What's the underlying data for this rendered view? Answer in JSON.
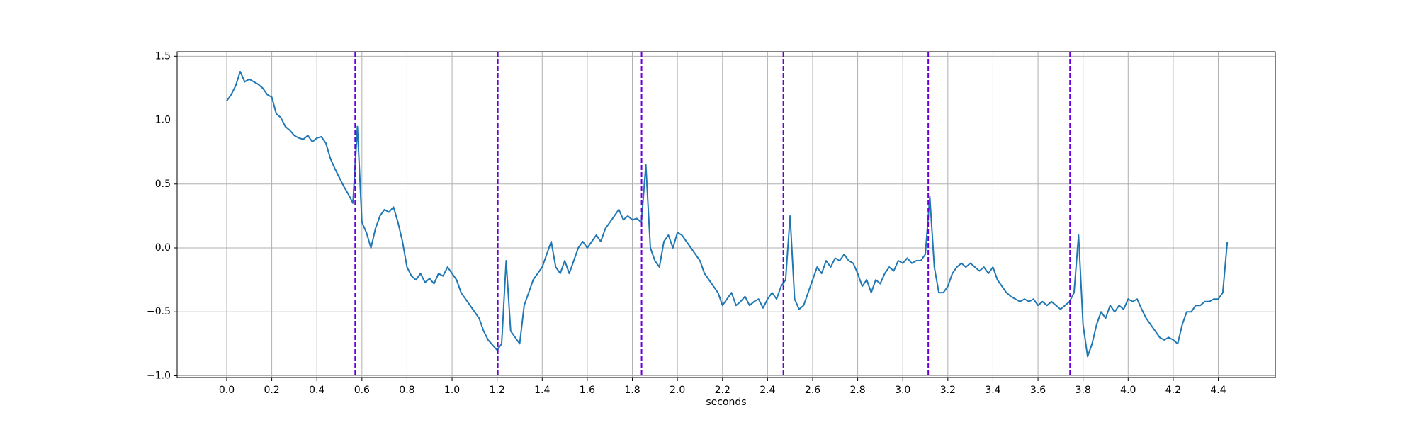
{
  "chart_data": {
    "type": "line",
    "xlabel": "seconds",
    "grid": true,
    "xlim": [
      -0.22,
      4.653
    ],
    "ylim": [
      -1.014,
      1.535
    ],
    "xticks": [
      {
        "value": 0,
        "label": "0.0"
      },
      0.2,
      0.4,
      0.6,
      0.8,
      {
        "value": 1,
        "label": "1.0"
      },
      1.2,
      1.4,
      1.6,
      1.8,
      {
        "value": 2,
        "label": "2.0"
      },
      2.2,
      2.4,
      2.6,
      2.8,
      {
        "value": 3,
        "label": "3.0"
      },
      3.2,
      3.4,
      3.6,
      3.8,
      {
        "value": 4,
        "label": "4.0"
      },
      4.2,
      4.4
    ],
    "yticks": [
      {
        "value": -1,
        "label": "−1.0"
      },
      {
        "value": -0.5,
        "label": "−0.5"
      },
      {
        "value": 0,
        "label": "0.0"
      },
      0.5,
      {
        "value": 1,
        "label": "1.0"
      },
      1.5
    ],
    "vlines": [
      0.57,
      1.203,
      1.841,
      2.47,
      3.113,
      3.742
    ],
    "vline_color": "#6a00d8",
    "x": [
      0,
      0.02,
      0.04,
      0.06,
      0.08,
      0.1,
      0.12,
      0.14,
      0.16,
      0.18,
      0.2,
      0.22,
      0.24,
      0.26,
      0.28,
      0.3,
      0.32,
      0.34,
      0.36,
      0.38,
      0.4,
      0.42,
      0.44,
      0.46,
      0.48,
      0.5,
      0.52,
      0.54,
      0.56,
      0.58,
      0.6,
      0.62,
      0.64,
      0.66,
      0.68,
      0.7,
      0.72,
      0.74,
      0.76,
      0.78,
      0.8,
      0.82,
      0.84,
      0.86,
      0.88,
      0.9,
      0.92,
      0.94,
      0.96,
      0.98,
      1,
      1.02,
      1.04,
      1.06,
      1.08,
      1.1,
      1.12,
      1.14,
      1.16,
      1.18,
      1.2,
      1.22,
      1.24,
      1.26,
      1.28,
      1.3,
      1.32,
      1.34,
      1.36,
      1.38,
      1.4,
      1.42,
      1.44,
      1.46,
      1.48,
      1.5,
      1.52,
      1.54,
      1.56,
      1.58,
      1.6,
      1.62,
      1.64,
      1.66,
      1.68,
      1.7,
      1.72,
      1.74,
      1.76,
      1.78,
      1.8,
      1.82,
      1.84,
      1.86,
      1.88,
      1.9,
      1.92,
      1.94,
      1.96,
      1.98,
      2,
      2.02,
      2.04,
      2.06,
      2.08,
      2.1,
      2.12,
      2.14,
      2.16,
      2.18,
      2.2,
      2.22,
      2.24,
      2.26,
      2.28,
      2.3,
      2.32,
      2.34,
      2.36,
      2.38,
      2.4,
      2.42,
      2.44,
      2.46,
      2.48,
      2.5,
      2.52,
      2.54,
      2.56,
      2.58,
      2.6,
      2.62,
      2.64,
      2.66,
      2.68,
      2.7,
      2.72,
      2.74,
      2.76,
      2.78,
      2.8,
      2.82,
      2.84,
      2.86,
      2.88,
      2.9,
      2.92,
      2.94,
      2.96,
      2.98,
      3,
      3.02,
      3.04,
      3.06,
      3.08,
      3.1,
      3.12,
      3.14,
      3.16,
      3.18,
      3.2,
      3.22,
      3.24,
      3.26,
      3.28,
      3.3,
      3.32,
      3.34,
      3.36,
      3.38,
      3.4,
      3.42,
      3.44,
      3.46,
      3.48,
      3.5,
      3.52,
      3.54,
      3.56,
      3.58,
      3.6,
      3.62,
      3.64,
      3.66,
      3.68,
      3.7,
      3.72,
      3.74,
      3.76,
      3.78,
      3.8,
      3.82,
      3.84,
      3.86,
      3.88,
      3.9,
      3.92,
      3.94,
      3.96,
      3.98,
      4,
      4.02,
      4.04,
      4.06,
      4.08,
      4.1,
      4.12,
      4.14,
      4.16,
      4.18,
      4.2,
      4.22,
      4.24,
      4.26,
      4.28,
      4.3,
      4.32,
      4.34,
      4.36,
      4.38,
      4.4,
      4.42,
      4.44
    ],
    "series": [
      {
        "color": "#1f77b4",
        "values": [
          1.15,
          1.2,
          1.27,
          1.38,
          1.3,
          1.32,
          1.3,
          1.28,
          1.25,
          1.2,
          1.18,
          1.05,
          1.02,
          0.95,
          0.92,
          0.88,
          0.86,
          0.85,
          0.88,
          0.83,
          0.86,
          0.87,
          0.82,
          0.7,
          0.62,
          0.55,
          0.48,
          0.42,
          0.35,
          0.95,
          0.2,
          0.12,
          0,
          0.15,
          0.25,
          0.3,
          0.28,
          0.32,
          0.2,
          0.05,
          -0.15,
          -0.22,
          -0.25,
          -0.2,
          -0.27,
          -0.24,
          -0.28,
          -0.2,
          -0.22,
          -0.15,
          -0.2,
          -0.25,
          -0.35,
          -0.4,
          -0.45,
          -0.5,
          -0.55,
          -0.65,
          -0.72,
          -0.76,
          -0.8,
          -0.75,
          -0.1,
          -0.65,
          -0.7,
          -0.75,
          -0.45,
          -0.35,
          -0.25,
          -0.2,
          -0.15,
          -0.05,
          0.05,
          -0.15,
          -0.2,
          -0.1,
          -0.2,
          -0.1,
          0,
          0.05,
          0,
          0.05,
          0.1,
          0.05,
          0.15,
          0.2,
          0.25,
          0.3,
          0.22,
          0.25,
          0.22,
          0.23,
          0.2,
          0.65,
          0,
          -0.1,
          -0.15,
          0.05,
          0.1,
          0,
          0.12,
          0.1,
          0.05,
          0,
          -0.05,
          -0.1,
          -0.2,
          -0.25,
          -0.3,
          -0.35,
          -0.45,
          -0.4,
          -0.35,
          -0.45,
          -0.42,
          -0.38,
          -0.45,
          -0.42,
          -0.4,
          -0.47,
          -0.4,
          -0.35,
          -0.4,
          -0.3,
          -0.25,
          0.25,
          -0.4,
          -0.48,
          -0.45,
          -0.35,
          -0.25,
          -0.15,
          -0.2,
          -0.1,
          -0.15,
          -0.08,
          -0.1,
          -0.05,
          -0.1,
          -0.12,
          -0.2,
          -0.3,
          -0.25,
          -0.35,
          -0.25,
          -0.28,
          -0.2,
          -0.15,
          -0.18,
          -0.1,
          -0.12,
          -0.08,
          -0.12,
          -0.1,
          -0.1,
          -0.05,
          0.4,
          -0.15,
          -0.35,
          -0.35,
          -0.3,
          -0.2,
          -0.15,
          -0.12,
          -0.15,
          -0.12,
          -0.15,
          -0.18,
          -0.15,
          -0.2,
          -0.15,
          -0.25,
          -0.3,
          -0.35,
          -0.38,
          -0.4,
          -0.42,
          -0.4,
          -0.42,
          -0.4,
          -0.45,
          -0.42,
          -0.45,
          -0.42,
          -0.45,
          -0.48,
          -0.45,
          -0.42,
          -0.35,
          0.1,
          -0.6,
          -0.85,
          -0.75,
          -0.6,
          -0.5,
          -0.55,
          -0.45,
          -0.5,
          -0.45,
          -0.48,
          -0.4,
          -0.42,
          -0.4,
          -0.48,
          -0.55,
          -0.6,
          -0.65,
          -0.7,
          -0.72,
          -0.7,
          -0.72,
          -0.75,
          -0.6,
          -0.5,
          -0.5,
          -0.45,
          -0.45,
          -0.42,
          -0.42,
          -0.4,
          -0.4,
          -0.35,
          0.05
        ]
      }
    ]
  }
}
